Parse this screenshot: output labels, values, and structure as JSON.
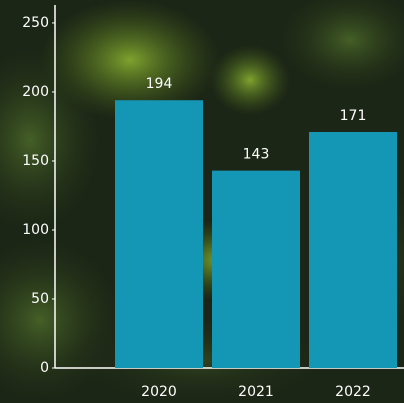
{
  "chart_data": {
    "type": "bar",
    "categories": [
      "2020",
      "2021",
      "2022"
    ],
    "values": [
      194,
      143,
      171
    ],
    "color": "#1497b5",
    "ylim": [
      0,
      263
    ],
    "yticks": [
      0,
      50,
      100,
      150,
      200,
      250
    ],
    "grid": false
  }
}
